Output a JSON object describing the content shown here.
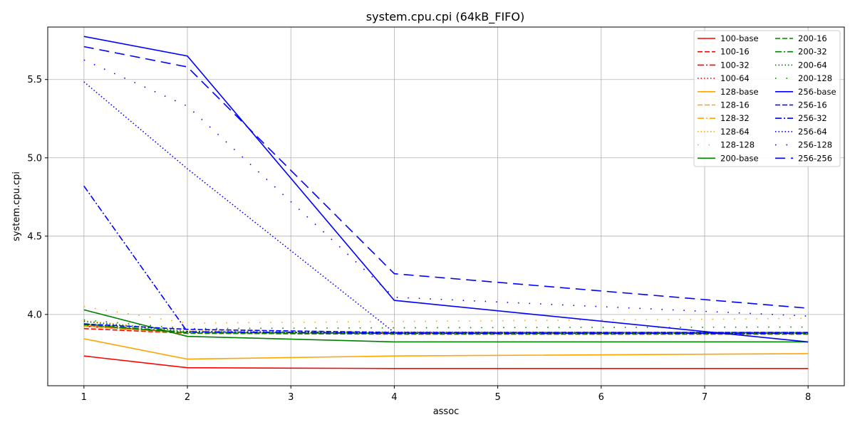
{
  "chart_data": {
    "type": "line",
    "title": "system.cpu.cpi (64kB_FIFO)",
    "xlabel": "assoc",
    "ylabel": "system.cpu.cpi",
    "x": [
      1,
      2,
      4,
      8
    ],
    "xticks": [
      1,
      2,
      3,
      4,
      5,
      6,
      7,
      8
    ],
    "yticks": [
      4.0,
      4.5,
      5.0,
      5.5
    ],
    "ytick_labels": [
      "4.0",
      "4.5",
      "5.0",
      "5.5"
    ],
    "xlim": [
      0.65,
      8.35
    ],
    "ylim": [
      3.545,
      5.835
    ],
    "grid": true,
    "legend_placement": "top-right",
    "legend_columns": 2,
    "series": [
      {
        "name": "100-base",
        "color": "#ff0000",
        "style": "solid",
        "values": [
          3.735,
          3.66,
          3.655,
          3.655
        ]
      },
      {
        "name": "100-16",
        "color": "#ff0000",
        "style": "dashed",
        "values": [
          3.91,
          3.88,
          3.875,
          3.875
        ]
      },
      {
        "name": "100-32",
        "color": "#ff0000",
        "style": "dashdot",
        "values": [
          3.925,
          3.885,
          3.88,
          3.88
        ]
      },
      {
        "name": "100-64",
        "color": "#ff0000",
        "style": "dotted",
        "values": [
          3.93,
          3.885,
          3.88,
          3.88
        ]
      },
      {
        "name": "128-base",
        "color": "#ffa500",
        "style": "solid",
        "values": [
          3.845,
          3.715,
          3.735,
          3.75
        ]
      },
      {
        "name": "128-16",
        "color": "#ffa500",
        "style": "dashed",
        "values": [
          3.925,
          3.88,
          3.875,
          3.875
        ]
      },
      {
        "name": "128-32",
        "color": "#ffa500",
        "style": "dashdot",
        "values": [
          3.935,
          3.885,
          3.88,
          3.88
        ]
      },
      {
        "name": "128-64",
        "color": "#ffa500",
        "style": "dotted",
        "values": [
          3.96,
          3.895,
          3.89,
          3.885
        ]
      },
      {
        "name": "128-128",
        "color": "#ffa500",
        "style": "sparse",
        "values": [
          4.05,
          3.945,
          3.955,
          3.975
        ]
      },
      {
        "name": "200-base",
        "color": "#008000",
        "style": "solid",
        "values": [
          4.03,
          3.86,
          3.825,
          3.825
        ]
      },
      {
        "name": "200-16",
        "color": "#008000",
        "style": "dashed",
        "values": [
          3.935,
          3.88,
          3.875,
          3.875
        ]
      },
      {
        "name": "200-32",
        "color": "#008000",
        "style": "dashdot",
        "values": [
          3.94,
          3.885,
          3.88,
          3.88
        ]
      },
      {
        "name": "200-64",
        "color": "#008000",
        "style": "dotted",
        "values": [
          3.955,
          3.89,
          3.885,
          3.885
        ]
      },
      {
        "name": "200-128",
        "color": "#008000",
        "style": "sparse",
        "values": [
          3.965,
          3.91,
          3.915,
          3.92
        ]
      },
      {
        "name": "256-base",
        "color": "#0000ff",
        "style": "solid",
        "values": [
          5.775,
          5.65,
          4.09,
          3.825
        ]
      },
      {
        "name": "256-16",
        "color": "#0000ff",
        "style": "dashed",
        "values": [
          3.94,
          3.905,
          3.885,
          3.885
        ]
      },
      {
        "name": "256-32",
        "color": "#0000ff",
        "style": "dashdot",
        "values": [
          4.82,
          3.89,
          3.88,
          3.88
        ]
      },
      {
        "name": "256-64",
        "color": "#0000ff",
        "style": "dotted",
        "values": [
          5.485,
          4.93,
          3.885,
          3.885
        ]
      },
      {
        "name": "256-128",
        "color": "#0000ff",
        "style": "sparse",
        "values": [
          5.625,
          5.33,
          4.11,
          3.99
        ]
      },
      {
        "name": "256-256",
        "color": "#0000ff",
        "style": "loosedash",
        "values": [
          5.71,
          5.58,
          4.26,
          4.04
        ]
      }
    ]
  }
}
